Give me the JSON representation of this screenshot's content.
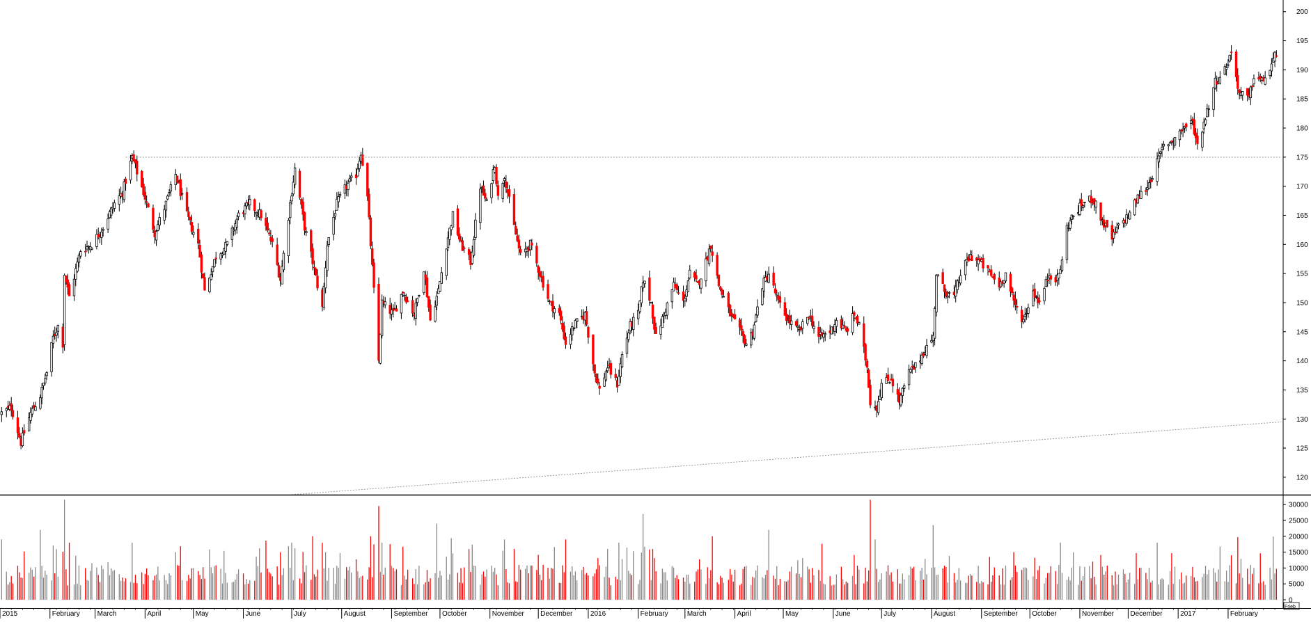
{
  "chart_data": [
    {
      "type": "candlestick",
      "title": "",
      "xlabel": "",
      "ylabel": "",
      "ylim": [
        117,
        202
      ],
      "y_ticks": [
        120,
        125,
        130,
        135,
        140,
        145,
        150,
        155,
        160,
        165,
        170,
        175,
        180,
        185,
        190,
        195,
        200
      ],
      "grid": false,
      "up_color": "#ffffff",
      "down_color": "#ff0000",
      "wick_color": "#000000",
      "x_months": [
        "2015",
        "February",
        "March",
        "April",
        "May",
        "June",
        "July",
        "August",
        "September",
        "October",
        "November",
        "December",
        "2016",
        "February",
        "March",
        "April",
        "May",
        "June",
        "July",
        "August",
        "September",
        "October",
        "November",
        "December",
        "2017",
        "February"
      ],
      "close_keypoints": [
        [
          "2015-01-02",
          131
        ],
        [
          "2015-01-08",
          132
        ],
        [
          "2015-01-14",
          126
        ],
        [
          "2015-01-20",
          131
        ],
        [
          "2015-01-26",
          134
        ],
        [
          "2015-01-30",
          138
        ],
        [
          "2015-02-03",
          144
        ],
        [
          "2015-02-06",
          146
        ],
        [
          "2015-02-09",
          143
        ],
        [
          "2015-02-10",
          155
        ],
        [
          "2015-02-13",
          151
        ],
        [
          "2015-02-20",
          159
        ],
        [
          "2015-02-27",
          160
        ],
        [
          "2015-03-06",
          163
        ],
        [
          "2015-03-13",
          167
        ],
        [
          "2015-03-18",
          169
        ],
        [
          "2015-03-24",
          175
        ],
        [
          "2015-03-31",
          169
        ],
        [
          "2015-04-07",
          162
        ],
        [
          "2015-04-14",
          167
        ],
        [
          "2015-04-20",
          172
        ],
        [
          "2015-04-27",
          165
        ],
        [
          "2015-05-04",
          160
        ],
        [
          "2015-05-08",
          152
        ],
        [
          "2015-05-15",
          158
        ],
        [
          "2015-05-22",
          160
        ],
        [
          "2015-05-29",
          165
        ],
        [
          "2015-06-05",
          167
        ],
        [
          "2015-06-12",
          165
        ],
        [
          "2015-06-19",
          160
        ],
        [
          "2015-06-24",
          154
        ],
        [
          "2015-06-30",
          167
        ],
        [
          "2015-07-03",
          173
        ],
        [
          "2015-07-09",
          163
        ],
        [
          "2015-07-14",
          157
        ],
        [
          "2015-07-20",
          149
        ],
        [
          "2015-07-23",
          160
        ],
        [
          "2015-07-29",
          167
        ],
        [
          "2015-08-04",
          170
        ],
        [
          "2015-08-10",
          172
        ],
        [
          "2015-08-13",
          176
        ],
        [
          "2015-08-17",
          168
        ],
        [
          "2015-08-19",
          160
        ],
        [
          "2015-08-24",
          140
        ],
        [
          "2015-08-26",
          150
        ],
        [
          "2015-09-02",
          148
        ],
        [
          "2015-09-08",
          152
        ],
        [
          "2015-09-15",
          148
        ],
        [
          "2015-09-21",
          156
        ],
        [
          "2015-09-25",
          147
        ],
        [
          "2015-09-30",
          152
        ],
        [
          "2015-10-05",
          160
        ],
        [
          "2015-10-09",
          165
        ],
        [
          "2015-10-14",
          160
        ],
        [
          "2015-10-20",
          157
        ],
        [
          "2015-10-26",
          170
        ],
        [
          "2015-10-30",
          167
        ],
        [
          "2015-11-04",
          174
        ],
        [
          "2015-11-06",
          168
        ],
        [
          "2015-11-10",
          172
        ],
        [
          "2015-11-16",
          163
        ],
        [
          "2015-11-20",
          158
        ],
        [
          "2015-11-26",
          160
        ],
        [
          "2015-12-02",
          155
        ],
        [
          "2015-12-08",
          150
        ],
        [
          "2015-12-14",
          148
        ],
        [
          "2015-12-18",
          143
        ],
        [
          "2015-12-23",
          146
        ],
        [
          "2015-12-30",
          148
        ],
        [
          "2016-01-05",
          138
        ],
        [
          "2016-01-08",
          135
        ],
        [
          "2016-01-13",
          139
        ],
        [
          "2016-01-19",
          136
        ],
        [
          "2016-01-22",
          141
        ],
        [
          "2016-01-27",
          146
        ],
        [
          "2016-02-01",
          148
        ],
        [
          "2016-02-04",
          154
        ],
        [
          "2016-02-09",
          150
        ],
        [
          "2016-02-12",
          144
        ],
        [
          "2016-02-17",
          148
        ],
        [
          "2016-02-23",
          153
        ],
        [
          "2016-02-29",
          150
        ],
        [
          "2016-03-04",
          155
        ],
        [
          "2016-03-09",
          153
        ],
        [
          "2016-03-14",
          157
        ],
        [
          "2016-03-17",
          160
        ],
        [
          "2016-03-22",
          153
        ],
        [
          "2016-03-29",
          148
        ],
        [
          "2016-04-04",
          145
        ],
        [
          "2016-04-08",
          143
        ],
        [
          "2016-04-12",
          145
        ],
        [
          "2016-04-18",
          153
        ],
        [
          "2016-04-22",
          155
        ],
        [
          "2016-04-28",
          150
        ],
        [
          "2016-05-04",
          147
        ],
        [
          "2016-05-11",
          145
        ],
        [
          "2016-05-17",
          148
        ],
        [
          "2016-05-23",
          144
        ],
        [
          "2016-05-30",
          145
        ],
        [
          "2016-06-03",
          147
        ],
        [
          "2016-06-09",
          145
        ],
        [
          "2016-06-14",
          148
        ],
        [
          "2016-06-17",
          146
        ],
        [
          "2016-06-22",
          139
        ],
        [
          "2016-06-24",
          133
        ],
        [
          "2016-06-28",
          132
        ],
        [
          "2016-07-01",
          136
        ],
        [
          "2016-07-07",
          137
        ],
        [
          "2016-07-12",
          133
        ],
        [
          "2016-07-18",
          138
        ],
        [
          "2016-07-22",
          139
        ],
        [
          "2016-07-28",
          142
        ],
        [
          "2016-08-02",
          144
        ],
        [
          "2016-08-04",
          155
        ],
        [
          "2016-08-09",
          152
        ],
        [
          "2016-08-15",
          151
        ],
        [
          "2016-08-19",
          155
        ],
        [
          "2016-08-25",
          158
        ],
        [
          "2016-08-31",
          157
        ],
        [
          "2016-09-06",
          155
        ],
        [
          "2016-09-12",
          153
        ],
        [
          "2016-09-16",
          155
        ],
        [
          "2016-09-21",
          150
        ],
        [
          "2016-09-27",
          147
        ],
        [
          "2016-10-03",
          152
        ],
        [
          "2016-10-07",
          150
        ],
        [
          "2016-10-13",
          155
        ],
        [
          "2016-10-18",
          154
        ],
        [
          "2016-10-21",
          157
        ],
        [
          "2016-10-24",
          163
        ],
        [
          "2016-10-28",
          165
        ],
        [
          "2016-11-03",
          167
        ],
        [
          "2016-11-09",
          168
        ],
        [
          "2016-11-15",
          164
        ],
        [
          "2016-11-21",
          161
        ],
        [
          "2016-11-25",
          163
        ],
        [
          "2016-12-01",
          165
        ],
        [
          "2016-12-07",
          168
        ],
        [
          "2016-12-13",
          170
        ],
        [
          "2016-12-19",
          174
        ],
        [
          "2016-12-23",
          177
        ],
        [
          "2016-12-29",
          178
        ],
        [
          "2017-01-04",
          180
        ],
        [
          "2017-01-10",
          181
        ],
        [
          "2017-01-13",
          177
        ],
        [
          "2017-01-18",
          182
        ],
        [
          "2017-01-24",
          188
        ],
        [
          "2017-01-30",
          190
        ],
        [
          "2017-02-03",
          193
        ],
        [
          "2017-02-08",
          186
        ],
        [
          "2017-02-14",
          185
        ],
        [
          "2017-02-17",
          189
        ],
        [
          "2017-02-22",
          188
        ],
        [
          "2017-02-27",
          190
        ],
        [
          "2017-03-03",
          193
        ]
      ],
      "horizontal_line": {
        "y": 175,
        "style": "dotted",
        "color": "#999999"
      },
      "trend_line": {
        "from": [
          "2015-07-01",
          117
        ],
        "to": [
          "2017-03-03",
          129.5
        ],
        "style": "dotted",
        "color": "#999999"
      }
    },
    {
      "type": "bar",
      "title": "",
      "series_name": "",
      "ylim": [
        0,
        32000
      ],
      "y_ticks": [
        0,
        5000,
        10000,
        15000,
        20000,
        25000,
        30000
      ],
      "up_color": "#888888",
      "down_color": "#ff0000",
      "spikes": [
        [
          "2015-01-02",
          19000
        ],
        [
          "2015-01-26",
          22000
        ],
        [
          "2015-02-10",
          31500
        ],
        [
          "2015-02-13",
          18000
        ],
        [
          "2015-03-24",
          18000
        ],
        [
          "2015-04-20",
          15000
        ],
        [
          "2015-06-24",
          15000
        ],
        [
          "2015-07-01",
          18000
        ],
        [
          "2015-07-14",
          20000
        ],
        [
          "2015-07-22",
          15000
        ],
        [
          "2015-08-19",
          20000
        ],
        [
          "2015-08-24",
          29500
        ],
        [
          "2015-08-26",
          18000
        ],
        [
          "2015-09-29",
          24000
        ],
        [
          "2015-11-10",
          19000
        ],
        [
          "2015-11-16",
          16000
        ],
        [
          "2015-12-18",
          19000
        ],
        [
          "2016-01-13",
          16000
        ],
        [
          "2016-01-20",
          18000
        ],
        [
          "2016-02-04",
          27000
        ],
        [
          "2016-02-10",
          16000
        ],
        [
          "2016-03-18",
          20000
        ],
        [
          "2016-04-22",
          22000
        ],
        [
          "2016-06-24",
          31500
        ],
        [
          "2016-06-27",
          19000
        ],
        [
          "2016-08-02",
          23500
        ],
        [
          "2016-09-21",
          15000
        ],
        [
          "2016-10-20",
          18000
        ],
        [
          "2016-11-09",
          12000
        ],
        [
          "2016-12-19",
          18000
        ],
        [
          "2017-02-03",
          14000
        ]
      ]
    }
  ],
  "chart": {
    "price_ticks": [
      "200",
      "195",
      "190",
      "185",
      "180",
      "175",
      "170",
      "165",
      "160",
      "155",
      "150",
      "145",
      "140",
      "135",
      "130",
      "125",
      "120"
    ],
    "volume_ticks": [
      "30000",
      "25000",
      "20000",
      "15000",
      "10000",
      "5000",
      "0"
    ],
    "volume_corner_label": "Frieb"
  }
}
